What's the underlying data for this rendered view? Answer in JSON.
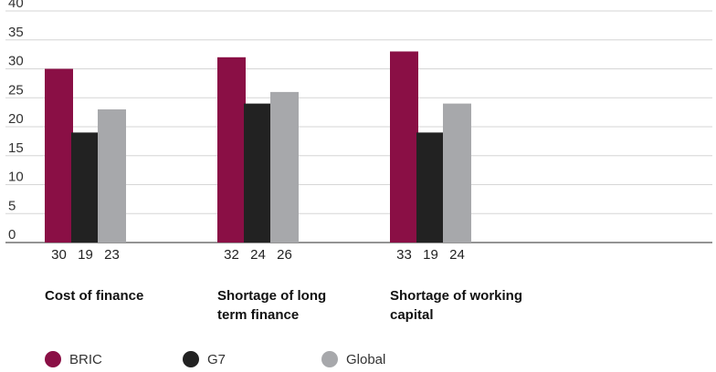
{
  "chart_data": {
    "type": "bar",
    "categories": [
      "Cost of finance",
      "Shortage of long term finance",
      "Shortage of working capital"
    ],
    "category_lines": [
      [
        "Cost of finance"
      ],
      [
        "Shortage of long",
        "term finance"
      ],
      [
        "Shortage of working",
        "capital"
      ]
    ],
    "series": [
      {
        "name": "BRIC",
        "values": [
          30,
          32,
          33
        ],
        "color": "#8a0f45"
      },
      {
        "name": "G7",
        "values": [
          19,
          24,
          19
        ],
        "color": "#222222"
      },
      {
        "name": "Global",
        "values": [
          23,
          26,
          24
        ],
        "color": "#a7a8ab"
      }
    ],
    "ylim": [
      0,
      40
    ],
    "yticks": [
      0,
      5,
      10,
      15,
      20,
      25,
      30,
      35,
      40
    ],
    "grid": true,
    "legend_position": "bottom",
    "value_labels_below_axis": true
  }
}
